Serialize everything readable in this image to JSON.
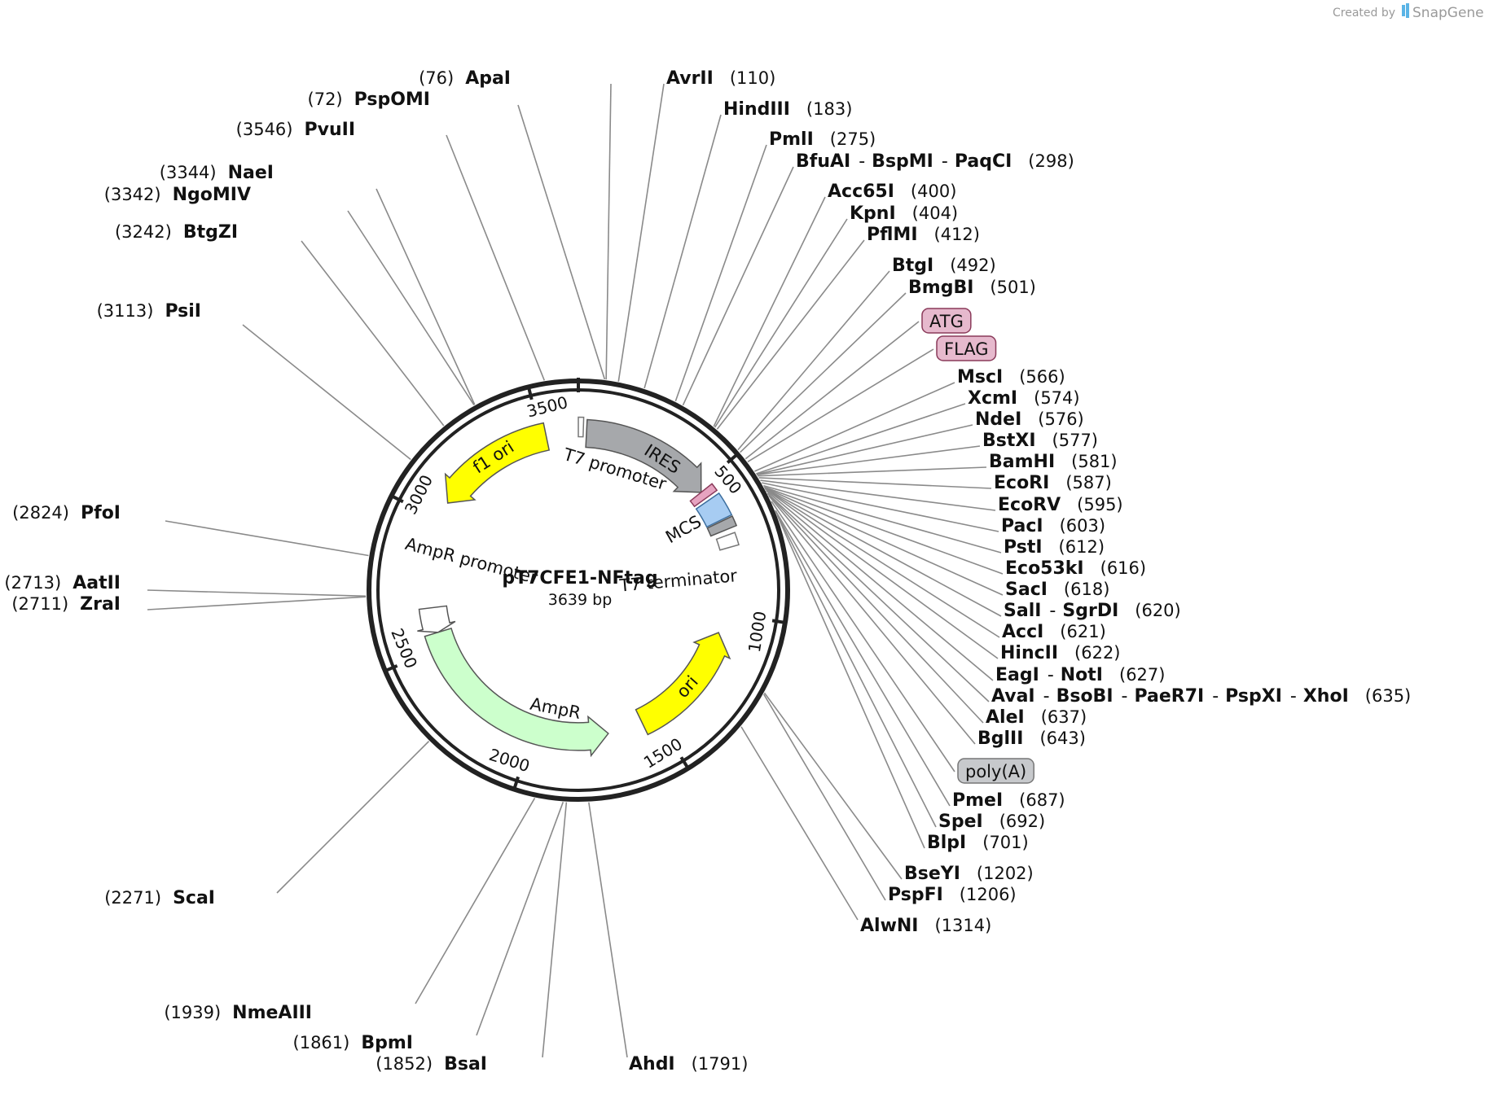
{
  "credit": {
    "created_by": "Created by",
    "brand": "SnapGene"
  },
  "plasmid": {
    "name": "pT7CFE1-NFtag",
    "length_bp": 3639,
    "size_label": "3639 bp"
  },
  "ticks": [
    {
      "bp": 500,
      "label": "500"
    },
    {
      "bp": 1000,
      "label": "1000"
    },
    {
      "bp": 1500,
      "label": "1500"
    },
    {
      "bp": 2000,
      "label": "2000"
    },
    {
      "bp": 2500,
      "label": "2500"
    },
    {
      "bp": 3000,
      "label": "3000"
    },
    {
      "bp": 3500,
      "label": "3500"
    }
  ],
  "features": [
    {
      "id": "t7-promoter",
      "label": "T7 promoter",
      "start": 3639,
      "end": 18,
      "color": "#ffffff",
      "stroke": "#777777",
      "kind": "box",
      "radius": 0.78
    },
    {
      "id": "ires",
      "label": "IRES",
      "start": 30,
      "end": 520,
      "color": "#a6a8ab",
      "stroke": "#555555",
      "kind": "arrow-cw",
      "radius": 0.75
    },
    {
      "id": "atg-flag",
      "label": "",
      "start": 520,
      "end": 548,
      "color": "#e6a3c0",
      "stroke": "#8a3a5a",
      "kind": "box",
      "radius": 0.75
    },
    {
      "id": "mcs",
      "label": "MCS",
      "start": 560,
      "end": 645,
      "color": "#a7ccf2",
      "stroke": "#3c6e9e",
      "kind": "box",
      "radius": 0.75
    },
    {
      "id": "poly-a",
      "label": "",
      "start": 650,
      "end": 685,
      "color": "#a6a8ab",
      "stroke": "#555555",
      "kind": "box",
      "radius": 0.75
    },
    {
      "id": "t7-terminator",
      "label": "T7 terminator",
      "start": 705,
      "end": 750,
      "color": "#ffffff",
      "stroke": "#777777",
      "kind": "box",
      "radius": 0.75
    },
    {
      "id": "ori",
      "label": "ori",
      "start": 1080,
      "end": 1560,
      "color": "#ffff00",
      "stroke": "#555555",
      "kind": "arrow-ccw",
      "radius": 0.7
    },
    {
      "id": "ampr",
      "label": "AmpR",
      "start": 1700,
      "end": 2560,
      "color": "#ccffcc",
      "stroke": "#555555",
      "kind": "arrow-ccw",
      "radius": 0.7
    },
    {
      "id": "ampr-promoter",
      "label": "AmpR promoter",
      "start": 2560,
      "end": 2660,
      "color": "#ffffff",
      "stroke": "#555555",
      "kind": "arrow-ccw",
      "radius": 0.7
    },
    {
      "id": "f1-ori",
      "label": "f1 ori",
      "start": 3070,
      "end": 3520,
      "color": "#ffff00",
      "stroke": "#555555",
      "kind": "arrow-ccw",
      "radius": 0.75
    }
  ],
  "feature_tags": [
    {
      "label": "ATG",
      "bp": 524,
      "color": "#e6b9cd",
      "stroke": "#8a3a5a"
    },
    {
      "label": "FLAG",
      "bp": 534,
      "color": "#e6b9cd",
      "stroke": "#8a3a5a"
    },
    {
      "label": "poly(A)",
      "bp": 660,
      "color": "#c7c9cc",
      "stroke": "#777777"
    }
  ],
  "enzymes": [
    {
      "names": [
        "ApaI"
      ],
      "pos": "(76)",
      "bp": 76
    },
    {
      "names": [
        "AvrII"
      ],
      "pos": "(110)",
      "bp": 110
    },
    {
      "names": [
        "PspOMI"
      ],
      "pos": "(72)",
      "bp": 72
    },
    {
      "names": [
        "HindIII"
      ],
      "pos": "(183)",
      "bp": 183
    },
    {
      "names": [
        "PvuII"
      ],
      "pos": "(3546)",
      "bp": 3546
    },
    {
      "names": [
        "PmlI"
      ],
      "pos": "(275)",
      "bp": 275
    },
    {
      "names": [
        "BfuAI",
        "BspMI",
        "PaqCI"
      ],
      "pos": "(298)",
      "bp": 298
    },
    {
      "names": [
        "NaeI"
      ],
      "pos": "(3344)",
      "bp": 3344
    },
    {
      "names": [
        "NgoMIV"
      ],
      "pos": "(3342)",
      "bp": 3342
    },
    {
      "names": [
        "Acc65I"
      ],
      "pos": "(400)",
      "bp": 400
    },
    {
      "names": [
        "KpnI"
      ],
      "pos": "(404)",
      "bp": 404
    },
    {
      "names": [
        "BtgZI"
      ],
      "pos": "(3242)",
      "bp": 3242
    },
    {
      "names": [
        "PflMI"
      ],
      "pos": "(412)",
      "bp": 412
    },
    {
      "names": [
        "BtgI"
      ],
      "pos": "(492)",
      "bp": 492
    },
    {
      "names": [
        "BmgBI"
      ],
      "pos": "(501)",
      "bp": 501
    },
    {
      "names": [
        "PsiI"
      ],
      "pos": "(3113)",
      "bp": 3113
    },
    {
      "names": [
        "MscI"
      ],
      "pos": "(566)",
      "bp": 566
    },
    {
      "names": [
        "XcmI"
      ],
      "pos": "(574)",
      "bp": 574
    },
    {
      "names": [
        "NdeI"
      ],
      "pos": "(576)",
      "bp": 576
    },
    {
      "names": [
        "BstXI"
      ],
      "pos": "(577)",
      "bp": 577
    },
    {
      "names": [
        "BamHI"
      ],
      "pos": "(581)",
      "bp": 581
    },
    {
      "names": [
        "EcoRI"
      ],
      "pos": "(587)",
      "bp": 587
    },
    {
      "names": [
        "EcoRV"
      ],
      "pos": "(595)",
      "bp": 595
    },
    {
      "names": [
        "PfoI"
      ],
      "pos": "(2824)",
      "bp": 2824
    },
    {
      "names": [
        "PacI"
      ],
      "pos": "(603)",
      "bp": 603
    },
    {
      "names": [
        "PstI"
      ],
      "pos": "(612)",
      "bp": 612
    },
    {
      "names": [
        "Eco53kI"
      ],
      "pos": "(616)",
      "bp": 616
    },
    {
      "names": [
        "AatII"
      ],
      "pos": "(2713)",
      "bp": 2713
    },
    {
      "names": [
        "SacI"
      ],
      "pos": "(618)",
      "bp": 618
    },
    {
      "names": [
        "ZraI"
      ],
      "pos": "(2711)",
      "bp": 2711
    },
    {
      "names": [
        "SalI",
        "SgrDI"
      ],
      "pos": "(620)",
      "bp": 620
    },
    {
      "names": [
        "AccI"
      ],
      "pos": "(621)",
      "bp": 621
    },
    {
      "names": [
        "HincII"
      ],
      "pos": "(622)",
      "bp": 622
    },
    {
      "names": [
        "EagI",
        "NotI"
      ],
      "pos": "(627)",
      "bp": 627
    },
    {
      "names": [
        "AvaI",
        "BsoBI",
        "PaeR7I",
        "PspXI",
        "XhoI"
      ],
      "pos": "(635)",
      "bp": 635
    },
    {
      "names": [
        "AleI"
      ],
      "pos": "(637)",
      "bp": 637
    },
    {
      "names": [
        "BglII"
      ],
      "pos": "(643)",
      "bp": 643
    },
    {
      "names": [
        "PmeI"
      ],
      "pos": "(687)",
      "bp": 687
    },
    {
      "names": [
        "SpeI"
      ],
      "pos": "(692)",
      "bp": 692
    },
    {
      "names": [
        "BlpI"
      ],
      "pos": "(701)",
      "bp": 701
    },
    {
      "names": [
        "BseYI"
      ],
      "pos": "(1202)",
      "bp": 1202
    },
    {
      "names": [
        "PspFI"
      ],
      "pos": "(1206)",
      "bp": 1206
    },
    {
      "names": [
        "ScaI"
      ],
      "pos": "(2271)",
      "bp": 2271
    },
    {
      "names": [
        "AlwNI"
      ],
      "pos": "(1314)",
      "bp": 1314
    },
    {
      "names": [
        "NmeAIII"
      ],
      "pos": "(1939)",
      "bp": 1939
    },
    {
      "names": [
        "BpmI"
      ],
      "pos": "(1861)",
      "bp": 1861
    },
    {
      "names": [
        "BsaI"
      ],
      "pos": "(1852)",
      "bp": 1852
    },
    {
      "names": [
        "AhdI"
      ],
      "pos": "(1791)",
      "bp": 1791
    }
  ]
}
